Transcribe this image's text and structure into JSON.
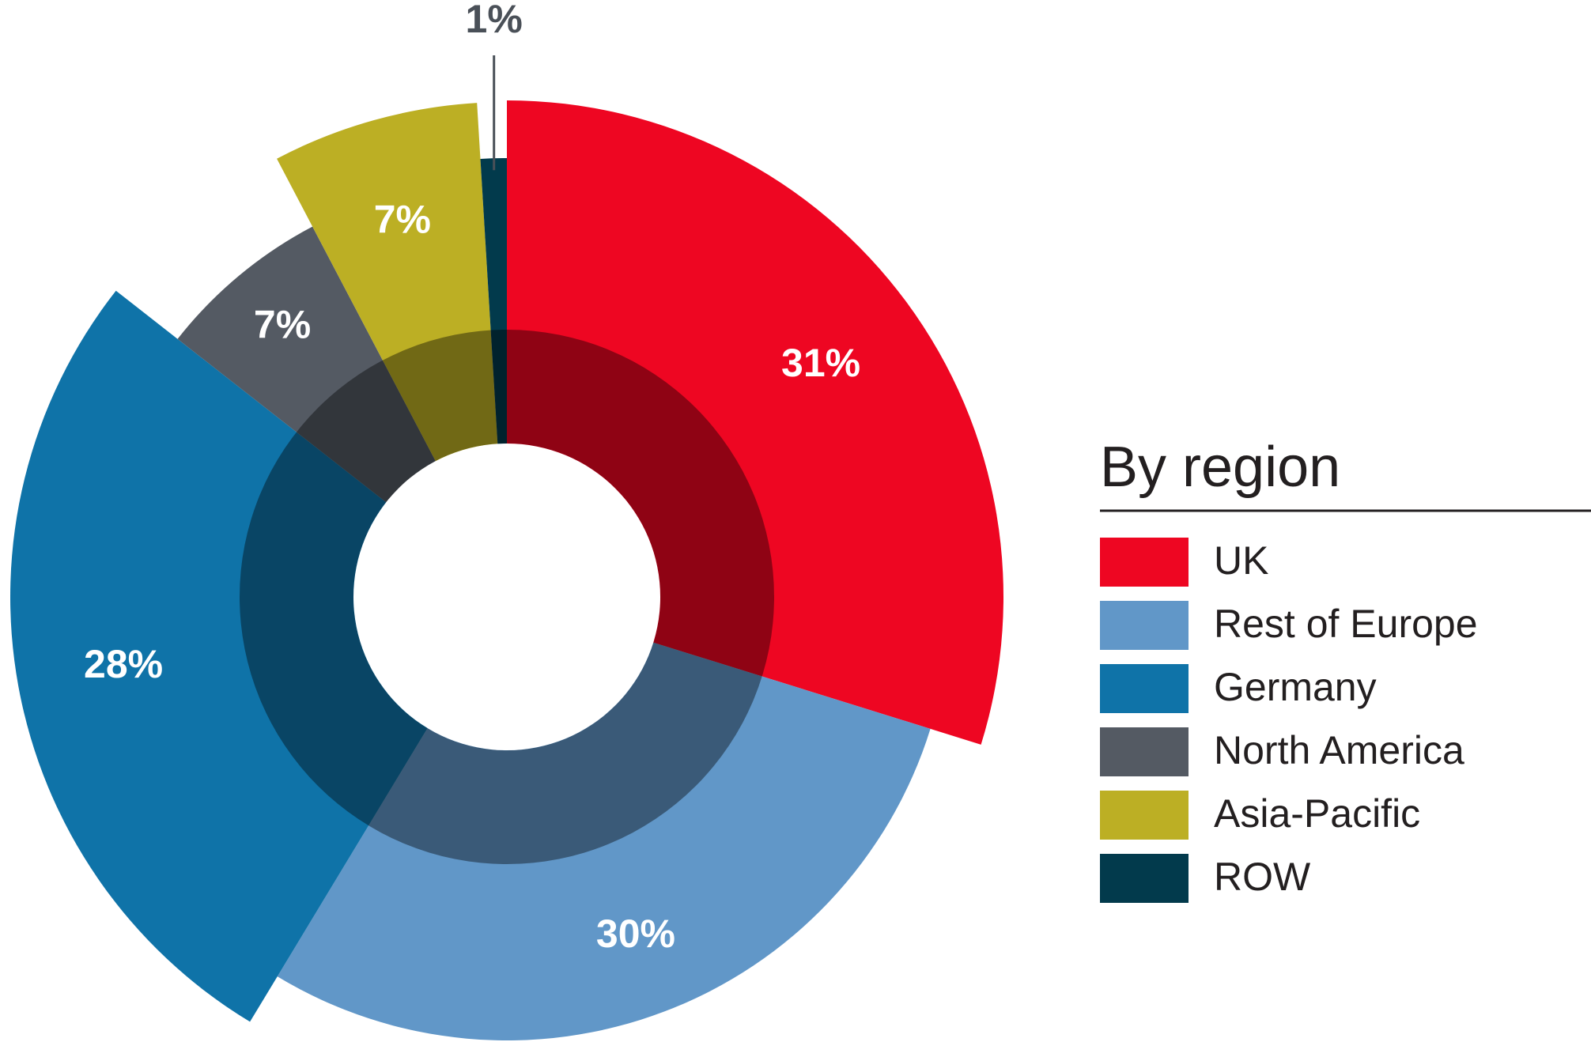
{
  "chart_data": {
    "type": "pie",
    "title": "By region",
    "categories": [
      "UK",
      "Rest of Europe",
      "Germany",
      "North America",
      "Asia-Pacific",
      "ROW"
    ],
    "values": [
      31,
      30,
      28,
      7,
      7,
      1
    ],
    "value_labels": [
      "31%",
      "30%",
      "28%",
      "7%",
      "7%",
      "1%"
    ],
    "colors": [
      "#ee0622",
      "#6197c8",
      "#0f73a8",
      "#545a63",
      "#bcaf24",
      "#023a4c"
    ]
  }
}
